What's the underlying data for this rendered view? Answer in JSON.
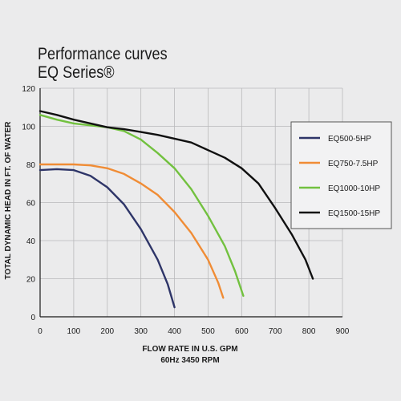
{
  "title": {
    "line1": "Performance curves",
    "line2": "EQ Series®"
  },
  "chart_data": {
    "type": "line",
    "title": "Performance curves EQ Series®",
    "xlabel": "FLOW RATE IN U.S. GPM",
    "xlabel_sub": "60Hz 3450 RPM",
    "ylabel": "TOTAL DYNAMIC HEAD IN FT. OF WATER",
    "xlim": [
      0,
      900
    ],
    "ylim": [
      0,
      120
    ],
    "xticks": [
      0,
      100,
      200,
      300,
      400,
      500,
      600,
      700,
      800,
      900
    ],
    "yticks": [
      0,
      20,
      40,
      60,
      80,
      100,
      120
    ],
    "grid": true,
    "legend_position": "right",
    "series": [
      {
        "name": "EQ500-5HP",
        "color": "#2e3568",
        "x": [
          0,
          50,
          100,
          150,
          200,
          250,
          300,
          350,
          380,
          400
        ],
        "y": [
          77,
          77.5,
          77,
          74,
          68,
          59,
          46,
          30,
          17,
          5
        ]
      },
      {
        "name": "EQ750-7.5HP",
        "color": "#f08c35",
        "x": [
          0,
          50,
          100,
          150,
          200,
          250,
          300,
          350,
          400,
          450,
          500,
          530,
          545
        ],
        "y": [
          80,
          80,
          80,
          79.5,
          78,
          75,
          70,
          64,
          55,
          44,
          30,
          18,
          10
        ]
      },
      {
        "name": "EQ1000-10HP",
        "color": "#72c13f",
        "x": [
          0,
          50,
          100,
          150,
          200,
          250,
          300,
          350,
          400,
          450,
          500,
          550,
          580,
          605
        ],
        "y": [
          106,
          103.5,
          101.5,
          100.5,
          99.5,
          97.5,
          93,
          86,
          78,
          67,
          53,
          37,
          24,
          11
        ]
      },
      {
        "name": "EQ1500-15HP",
        "color": "#101010",
        "x": [
          0,
          50,
          100,
          150,
          200,
          250,
          300,
          350,
          400,
          450,
          500,
          550,
          600,
          650,
          700,
          750,
          790,
          812
        ],
        "y": [
          108,
          106,
          103.5,
          101.5,
          99.5,
          98.5,
          97,
          95.5,
          93.5,
          91.5,
          87.5,
          83.5,
          78,
          70,
          57,
          43,
          30,
          20
        ]
      }
    ]
  }
}
